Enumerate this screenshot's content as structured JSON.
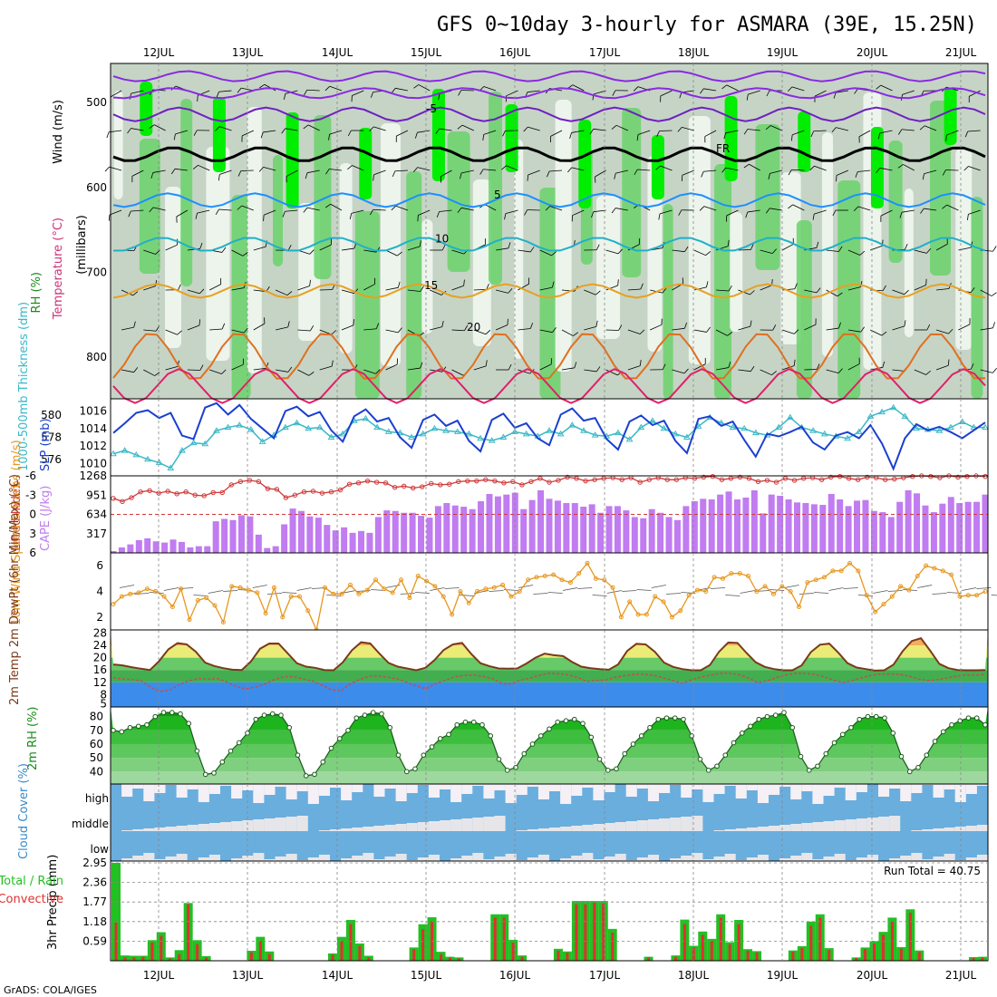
{
  "title": "GFS 0~10day 3-hourly for ASMARA (39E, 15.25N)",
  "footer": "GrADS: COLA/IGES",
  "run_total_label": "Run Total = 40.75",
  "date_labels": [
    "12JUL",
    "13JUL",
    "14JUL",
    "15JUL",
    "16JUL",
    "17JUL",
    "18JUL",
    "19JUL",
    "20JUL",
    "21JUL"
  ],
  "colors": {
    "rh_light": "#eef6ee",
    "rh_mid": "#c6d4c6",
    "rh_green": "#6ad26a",
    "rh_bright": "#00ee00",
    "slp": "#1a3fd0",
    "thickness": "#3ab8c8",
    "li": "#d03a3a",
    "cape": "#c07cf0",
    "wind": "#e8961c",
    "cloud": "#6aaede",
    "precip_total": "#22c022",
    "precip_conv": "#e03030"
  },
  "chart_data": [
    {
      "type": "heatmap",
      "panel": "upper-air",
      "ylabels": [
        "Wind (m/s)",
        "Temperature (°C)",
        "RH (%)",
        "(millibars)"
      ],
      "yticks": [
        500,
        600,
        700,
        800
      ],
      "ylim": [
        850,
        455
      ],
      "isotherm_labels": [
        "-5",
        "FR",
        "5",
        "10",
        "15",
        "20"
      ],
      "isotherms": [
        {
          "name": "-5",
          "base": 515
        },
        {
          "name": "FR",
          "base": 562
        },
        {
          "name": "5",
          "base": 616
        },
        {
          "name": "10",
          "base": 668
        },
        {
          "name": "15",
          "base": 723
        },
        {
          "name": "20",
          "base": 772
        }
      ]
    },
    {
      "type": "line",
      "panel": "slp-thickness",
      "ylabel_left": "1000-500mb Thickness (dm)",
      "ylabel_right": "SLP (mb)",
      "yticks_thickness": [
        576,
        578,
        580
      ],
      "yticks_slp": [
        1010,
        1012,
        1014,
        1016
      ],
      "slp": [
        1013.5,
        1014.6,
        1015.8,
        1016.1,
        1015.2,
        1015.8,
        1013.2,
        1012.8,
        1016.4,
        1016.9,
        1015.6,
        1016.7,
        1015.1,
        1014.0,
        1012.9,
        1016.0,
        1016.5,
        1015.4,
        1015.9,
        1013.8,
        1012.5,
        1015.4,
        1016.2,
        1014.8,
        1015.2,
        1013.0,
        1011.8,
        1015.0,
        1015.6,
        1014.3,
        1014.9,
        1012.6,
        1011.4,
        1015.0,
        1015.7,
        1014.1,
        1014.6,
        1012.9,
        1012.1,
        1015.6,
        1016.3,
        1014.9,
        1015.2,
        1012.8,
        1011.6,
        1014.8,
        1015.5,
        1014.4,
        1014.9,
        1012.6,
        1011.2,
        1015.1,
        1015.4,
        1014.3,
        1014.8,
        1012.7,
        1010.8,
        1013.4,
        1013.1,
        1013.6,
        1014.2,
        1012.4,
        1011.6,
        1013.2,
        1013.6,
        1012.9,
        1014.4,
        1012.3,
        1009.4,
        1012.9,
        1014.5,
        1013.8,
        1014.2,
        1013.6,
        1012.9,
        1013.8,
        1014.7
      ],
      "thickness": [
        576.5,
        576.8,
        576.4,
        576.0,
        575.7,
        575.2,
        576.8,
        577.5,
        577.4,
        578.6,
        578.9,
        579.1,
        578.7,
        577.6,
        578.2,
        578.9,
        579.3,
        578.8,
        578.9,
        578.0,
        578.3,
        579.5,
        579.7,
        578.9,
        578.5,
        578.4,
        578.0,
        578.3,
        578.8,
        578.6,
        578.5,
        578.3,
        577.9,
        577.7,
        578.0,
        578.5,
        578.3,
        578.1,
        578.6,
        578.3,
        579.1,
        578.6,
        578.2,
        578.1,
        578.4,
        577.8,
        578.9,
        579.5,
        578.8,
        578.3,
        578.0,
        579.0,
        579.8,
        579.3,
        578.9,
        578.8,
        578.4,
        578.2,
        578.9,
        579.8,
        578.9,
        578.6,
        578.3,
        578.1,
        577.9,
        578.5,
        579.9,
        580.3,
        580.7,
        579.9,
        578.8,
        578.7,
        578.6,
        578.9,
        579.4,
        578.9,
        578.9
      ]
    },
    {
      "type": "bar",
      "panel": "cape-li",
      "ylabel_left": "Lifted Index",
      "ylabel_right": "CAPE (J/kg)",
      "yticks_li": [
        -6,
        -3,
        0,
        3,
        6
      ],
      "yticks_cape": [
        317,
        634,
        951,
        1268
      ],
      "cape": [
        30,
        90,
        140,
        210,
        240,
        190,
        170,
        220,
        180,
        90,
        110,
        110,
        520,
        560,
        540,
        620,
        600,
        300,
        80,
        110,
        470,
        730,
        690,
        600,
        580,
        460,
        370,
        420,
        330,
        360,
        330,
        590,
        700,
        690,
        660,
        660,
        610,
        580,
        770,
        820,
        780,
        760,
        720,
        850,
        970,
        930,
        960,
        990,
        720,
        870,
        1030,
        890,
        860,
        820,
        820,
        760,
        800,
        660,
        770,
        770,
        700,
        590,
        570,
        720,
        660,
        590,
        540,
        770,
        850,
        890,
        880,
        960,
        1010,
        880,
        910,
        1030,
        650,
        960,
        940,
        880,
        830,
        820,
        800,
        790,
        970,
        880,
        770,
        860,
        870,
        690,
        670,
        590,
        840,
        1030,
        980,
        780,
        670,
        810,
        920,
        820,
        840,
        840,
        960
      ],
      "lifted_index": [
        -2.5,
        -2.0,
        -2.6,
        -3.5,
        -3.7,
        -3.3,
        -3.6,
        -3.2,
        -3.5,
        -3.0,
        -2.9,
        -3.4,
        -3.4,
        -4.6,
        -5.1,
        -5.3,
        -5.1,
        -4.0,
        -3.9,
        -2.6,
        -3.0,
        -3.5,
        -3.6,
        -3.3,
        -3.5,
        -3.8,
        -4.7,
        -4.9,
        -5.2,
        -5.0,
        -4.9,
        -4.2,
        -4.4,
        -4.1,
        -4.3,
        -4.8,
        -4.6,
        -4.7,
        -5.1,
        -5.2,
        -5.2,
        -5.4,
        -5.2,
        -4.9,
        -5.1,
        -4.6,
        -5.1,
        -5.6,
        -5.0,
        -5.3,
        -5.8,
        -5.6,
        -5.2,
        -5.4,
        -5.6,
        -5.7,
        -5.4,
        -5.7,
        -5.0,
        -5.4,
        -5.7,
        -5.4,
        -5.4,
        -5.7,
        -5.6,
        -5.8,
        -5.9,
        -5.4,
        -5.6,
        -5.8,
        -5.6,
        -5.1,
        -5.3,
        -5.0,
        -5.6,
        -5.3,
        -5.6,
        -5.7,
        -5.4,
        -5.8,
        -5.9,
        -5.6,
        -5.4,
        -5.8,
        -5.7,
        -5.4,
        -5.5,
        -5.7,
        -5.9,
        -6.0,
        -5.9,
        -5.7,
        -6.0,
        -5.8,
        -5.9,
        -6.0,
        -5.9
      ]
    },
    {
      "type": "line",
      "panel": "wind10m",
      "ylabel": "10m Wind Speed & Barbs (m/s)",
      "yticks": [
        2,
        4,
        6
      ],
      "ylim": [
        1,
        7
      ],
      "speed": [
        3.0,
        3.6,
        3.8,
        3.9,
        4.2,
        4.0,
        3.6,
        2.8,
        4.2,
        1.8,
        3.3,
        3.5,
        2.9,
        1.6,
        4.4,
        4.3,
        4.1,
        3.9,
        2.3,
        4.3,
        2.0,
        3.6,
        3.6,
        2.5,
        1.0,
        4.3,
        3.8,
        3.8,
        4.5,
        3.8,
        4.1,
        4.9,
        4.2,
        3.9,
        4.9,
        3.5,
        5.2,
        4.8,
        4.4,
        3.6,
        2.2,
        4.0,
        3.1,
        4.0,
        4.2,
        4.3,
        4.5,
        3.6,
        4.0,
        4.9,
        5.1,
        5.2,
        5.3,
        4.9,
        4.7,
        5.4,
        6.2,
        5.0,
        4.9,
        4.3,
        2.0,
        3.2,
        2.2,
        2.2,
        3.6,
        3.2,
        2.0,
        2.5,
        3.7,
        4.1,
        4.0,
        5.1,
        5.0,
        5.4,
        5.4,
        5.2,
        4.0,
        4.4,
        3.8,
        4.4,
        4.0,
        2.8,
        4.7,
        4.9,
        5.1,
        5.6,
        5.6,
        6.2,
        5.6,
        3.7,
        2.4,
        3.0,
        3.6,
        4.4,
        4.1,
        5.2,
        6.0,
        5.8,
        5.6,
        5.3,
        3.6,
        3.7,
        3.7,
        4.0
      ]
    },
    {
      "type": "area",
      "panel": "temp2m",
      "ylabel": "2m Temp 2m DewPt (6hr Min/Max) (°C)",
      "yticks": [
        5,
        8,
        12,
        16,
        20,
        24,
        28
      ],
      "ylim": [
        4,
        29
      ],
      "temperature": [
        17.8,
        17.5,
        16.9,
        16.4,
        16.0,
        18.9,
        22.7,
        24.7,
        24.3,
        21.9,
        18.4,
        17.3,
        16.6,
        16.1,
        16.0,
        18.8,
        22.9,
        24.6,
        24.6,
        21.4,
        18.2,
        17.1,
        16.7,
        16.0,
        15.9,
        18.5,
        22.4,
        25.0,
        24.6,
        21.3,
        18.3,
        17.1,
        16.5,
        15.9,
        16.7,
        19.2,
        22.5,
        24.3,
        24.8,
        21.2,
        18.2,
        17.2,
        16.5,
        16.4,
        16.5,
        18.1,
        20.0,
        21.3,
        20.8,
        20.5,
        18.6,
        17.1,
        16.6,
        16.3,
        16.1,
        17.8,
        22.2,
        24.5,
        24.3,
        21.9,
        18.4,
        17.0,
        16.3,
        15.9,
        15.9,
        17.6,
        21.9,
        24.9,
        24.8,
        21.5,
        18.5,
        17.0,
        16.3,
        15.9,
        15.9,
        17.5,
        21.8,
        24.2,
        24.6,
        21.6,
        18.2,
        16.8,
        16.3,
        15.8,
        15.9,
        17.7,
        22.1,
        25.4,
        26.3,
        22.3,
        18.0,
        16.6,
        16.0,
        15.9,
        15.9,
        16.0
      ],
      "dewpoint": [
        13.5,
        13.1,
        12.9,
        12.4,
        10.3,
        9.1,
        9.6,
        11.3,
        12.5,
        13.2,
        13.0,
        13.2,
        12.1,
        10.6,
        9.9,
        10.4,
        11.5,
        12.9,
        13.8,
        13.9,
        13.1,
        12.4,
        11.1,
        9.6,
        9.2,
        11.5,
        12.9,
        14.0,
        14.1,
        13.6,
        13.1,
        12.0,
        10.8,
        9.9,
        11.6,
        12.6,
        13.8,
        14.2,
        14.4,
        13.9,
        13.2,
        11.6,
        11.5,
        12.7,
        13.4,
        14.3,
        14.9,
        14.8,
        14.4,
        13.6,
        12.3,
        12.6,
        12.8,
        13.7,
        14.2,
        14.6,
        14.6,
        14.3,
        13.5,
        12.6,
        11.7,
        12.8,
        13.7,
        14.3,
        14.9,
        15.0,
        14.5,
        13.4,
        11.9,
        12.5,
        13.6,
        14.4,
        14.9,
        14.9,
        14.6,
        13.8,
        12.7,
        11.9,
        12.6,
        13.5,
        14.3,
        14.7,
        14.7,
        14.6,
        14.0,
        13.0,
        12.6,
        12.9,
        13.4,
        14.0,
        14.4,
        14.3,
        14.6
      ]
    },
    {
      "type": "area",
      "panel": "rh2m",
      "ylabel": "2m RH (%)",
      "yticks": [
        40,
        50,
        60,
        70,
        80
      ],
      "ylim": [
        31,
        87
      ],
      "rh": [
        70,
        69,
        72,
        73,
        74,
        80,
        83,
        83,
        82,
        75,
        55,
        38,
        39,
        47,
        55,
        61,
        68,
        78,
        81,
        82,
        81,
        72,
        52,
        37,
        38,
        47,
        57,
        64,
        70,
        79,
        81,
        83,
        82,
        72,
        52,
        40,
        42,
        52,
        58,
        64,
        67,
        74,
        76,
        76,
        74,
        66,
        49,
        41,
        43,
        53,
        60,
        66,
        71,
        76,
        77,
        78,
        75,
        65,
        49,
        41,
        42,
        53,
        60,
        66,
        72,
        78,
        79,
        79,
        78,
        66,
        49,
        41,
        44,
        52,
        61,
        68,
        73,
        78,
        80,
        81,
        83,
        72,
        51,
        41,
        44,
        53,
        61,
        67,
        72,
        78,
        80,
        80,
        79,
        68,
        51,
        40,
        43,
        52,
        62,
        69,
        74,
        77,
        79,
        79,
        74
      ]
    },
    {
      "type": "bar",
      "panel": "cloud",
      "ylabel": "Cloud Cover (%)",
      "yticks": [
        "high",
        "middle",
        "low"
      ]
    },
    {
      "type": "bar",
      "panel": "precip",
      "ylabel": "3hr Precip (mm)",
      "legend": [
        "Total / Rain",
        "Convective"
      ],
      "yticks": [
        0.59,
        1.18,
        1.77,
        2.36,
        2.95
      ],
      "ylim": [
        0,
        2.95
      ],
      "total": [
        2.95,
        0.16,
        0.15,
        0.15,
        0.62,
        0.86,
        0.1,
        0.32,
        1.74,
        0.62,
        0.14,
        0.0,
        0.0,
        0.0,
        0.0,
        0.3,
        0.72,
        0.28,
        0.0,
        0.0,
        0.0,
        0.0,
        0.0,
        0.0,
        0.22,
        0.72,
        1.23,
        0.52,
        0.15,
        0.0,
        0.0,
        0.0,
        0.0,
        0.4,
        1.1,
        1.31,
        0.27,
        0.12,
        0.1,
        0.0,
        0.0,
        0.0,
        1.4,
        1.4,
        0.63,
        0.16,
        0.0,
        0.0,
        0.0,
        0.36,
        0.28,
        1.8,
        1.8,
        1.8,
        1.8,
        0.96,
        0.0,
        0.0,
        0.0,
        0.12,
        0.0,
        0.0,
        0.16,
        1.24,
        0.45,
        0.88,
        0.66,
        1.4,
        0.56,
        1.23,
        0.35,
        0.29,
        0.0,
        0.0,
        0.0,
        0.31,
        0.44,
        1.18,
        1.4,
        0.38,
        0.0,
        0.0,
        0.1,
        0.4,
        0.59,
        0.87,
        1.3,
        0.41,
        1.55,
        0.31,
        0.0,
        0.0,
        0.0,
        0.0,
        0.0,
        0.11,
        0.12
      ],
      "convective": [
        1.15,
        0.1,
        0.1,
        0.12,
        0.55,
        0.75,
        0.07,
        0.2,
        1.7,
        0.5,
        0.1,
        0,
        0,
        0,
        0,
        0.25,
        0.6,
        0.2,
        0,
        0,
        0,
        0,
        0,
        0,
        0.18,
        0.6,
        1.1,
        0.45,
        0.1,
        0,
        0,
        0,
        0,
        0.35,
        0.95,
        1.2,
        0.2,
        0.1,
        0.07,
        0,
        0,
        0,
        1.3,
        1.3,
        0.55,
        0.12,
        0,
        0,
        0,
        0.3,
        0.24,
        1.7,
        1.7,
        1.75,
        1.72,
        0.85,
        0,
        0,
        0,
        0.1,
        0,
        0,
        0.12,
        1.1,
        0.4,
        0.78,
        0.6,
        1.3,
        0.5,
        1.1,
        0.3,
        0.25,
        0,
        0,
        0,
        0.27,
        0.38,
        1.05,
        1.3,
        0.32,
        0,
        0,
        0.08,
        0.35,
        0.52,
        0.78,
        1.18,
        0.36,
        1.45,
        0.26,
        0,
        0,
        0,
        0,
        0,
        0.08,
        0.1
      ]
    }
  ]
}
